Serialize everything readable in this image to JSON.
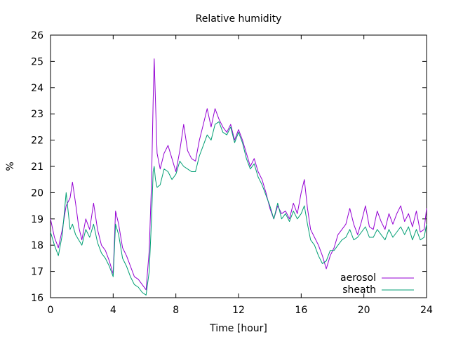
{
  "chart_data": {
    "type": "line",
    "title": "Relative humidity",
    "xlabel": "Time [hour]",
    "ylabel": "%",
    "xlim": [
      0,
      24
    ],
    "ylim": [
      16,
      26
    ],
    "xticks": [
      0,
      4,
      8,
      12,
      16,
      20,
      24
    ],
    "yticks": [
      16,
      17,
      18,
      19,
      20,
      21,
      22,
      23,
      24,
      25,
      26
    ],
    "grid": false,
    "legend_position": "bottom-right",
    "series": [
      {
        "name": "aerosol",
        "color": "#9400d3",
        "x": [
          0,
          0.25,
          0.5,
          0.75,
          1.0,
          1.25,
          1.4,
          1.6,
          1.8,
          2.0,
          2.25,
          2.5,
          2.75,
          3.0,
          3.25,
          3.5,
          3.75,
          4.0,
          4.15,
          4.35,
          4.6,
          4.85,
          5.1,
          5.35,
          5.6,
          5.85,
          6.1,
          6.3,
          6.45,
          6.55,
          6.62,
          6.7,
          6.8,
          7.0,
          7.25,
          7.5,
          7.75,
          8.0,
          8.25,
          8.5,
          8.75,
          9.0,
          9.25,
          9.5,
          9.75,
          10.0,
          10.25,
          10.5,
          10.75,
          11.0,
          11.25,
          11.5,
          11.75,
          12.0,
          12.25,
          12.5,
          12.75,
          13.0,
          13.25,
          13.5,
          13.75,
          14.0,
          14.25,
          14.5,
          14.75,
          15.0,
          15.25,
          15.5,
          15.75,
          16.0,
          16.2,
          16.4,
          16.6,
          16.85,
          17.1,
          17.35,
          17.6,
          17.85,
          18.1,
          18.35,
          18.6,
          18.85,
          19.1,
          19.35,
          19.6,
          19.85,
          20.1,
          20.35,
          20.6,
          20.85,
          21.1,
          21.35,
          21.6,
          21.85,
          22.1,
          22.35,
          22.6,
          22.85,
          23.1,
          23.35,
          23.6,
          23.85,
          24.0
        ],
        "values": [
          19.0,
          18.3,
          17.9,
          18.6,
          19.5,
          19.8,
          20.4,
          19.6,
          18.7,
          18.2,
          19.0,
          18.6,
          19.6,
          18.6,
          18.0,
          17.8,
          17.4,
          16.9,
          19.3,
          18.8,
          17.9,
          17.6,
          17.2,
          16.8,
          16.7,
          16.5,
          16.3,
          17.8,
          20.4,
          23.5,
          25.1,
          23.5,
          21.5,
          20.9,
          21.5,
          21.8,
          21.3,
          20.8,
          21.6,
          22.6,
          21.6,
          21.3,
          21.2,
          22.0,
          22.6,
          23.2,
          22.5,
          23.2,
          22.8,
          22.5,
          22.3,
          22.6,
          22.0,
          22.4,
          22.0,
          21.5,
          21.0,
          21.3,
          20.8,
          20.5,
          20.0,
          19.4,
          19.0,
          19.5,
          19.2,
          19.3,
          19.0,
          19.6,
          19.2,
          20.0,
          20.5,
          19.4,
          18.6,
          18.3,
          18.0,
          17.6,
          17.1,
          17.6,
          17.9,
          18.4,
          18.6,
          18.8,
          19.4,
          18.8,
          18.4,
          18.9,
          19.5,
          18.7,
          18.6,
          19.3,
          18.9,
          18.6,
          19.2,
          18.8,
          19.2,
          19.5,
          18.9,
          19.2,
          18.7,
          19.3,
          18.5,
          18.6,
          19.4
        ]
      },
      {
        "name": "sheath",
        "color": "#009e73",
        "x": [
          0,
          0.25,
          0.5,
          0.75,
          1.0,
          1.25,
          1.4,
          1.6,
          1.8,
          2.0,
          2.25,
          2.5,
          2.75,
          3.0,
          3.25,
          3.5,
          3.75,
          4.0,
          4.15,
          4.35,
          4.6,
          4.85,
          5.1,
          5.35,
          5.6,
          5.85,
          6.1,
          6.3,
          6.45,
          6.55,
          6.62,
          6.7,
          6.8,
          7.0,
          7.25,
          7.5,
          7.75,
          8.0,
          8.25,
          8.5,
          8.75,
          9.0,
          9.25,
          9.5,
          9.75,
          10.0,
          10.25,
          10.5,
          10.75,
          11.0,
          11.25,
          11.5,
          11.75,
          12.0,
          12.25,
          12.5,
          12.75,
          13.0,
          13.25,
          13.5,
          13.75,
          14.0,
          14.25,
          14.5,
          14.75,
          15.0,
          15.25,
          15.5,
          15.75,
          16.0,
          16.2,
          16.4,
          16.6,
          16.85,
          17.1,
          17.35,
          17.6,
          17.85,
          18.1,
          18.35,
          18.6,
          18.85,
          19.1,
          19.35,
          19.6,
          19.85,
          20.1,
          20.35,
          20.6,
          20.85,
          21.1,
          21.35,
          21.6,
          21.85,
          22.1,
          22.35,
          22.6,
          22.85,
          23.1,
          23.35,
          23.6,
          23.85,
          24.0
        ],
        "values": [
          18.5,
          18.0,
          17.6,
          18.4,
          20.0,
          18.6,
          18.8,
          18.4,
          18.2,
          18.0,
          18.6,
          18.3,
          18.8,
          18.1,
          17.7,
          17.5,
          17.2,
          16.8,
          18.8,
          18.4,
          17.5,
          17.2,
          16.8,
          16.5,
          16.4,
          16.2,
          16.1,
          17.0,
          19.0,
          20.8,
          21.0,
          20.5,
          20.2,
          20.3,
          20.9,
          20.8,
          20.5,
          20.7,
          21.2,
          21.0,
          20.9,
          20.8,
          20.8,
          21.4,
          21.8,
          22.2,
          22.0,
          22.6,
          22.7,
          22.3,
          22.2,
          22.5,
          21.9,
          22.3,
          21.9,
          21.3,
          20.9,
          21.1,
          20.6,
          20.3,
          19.9,
          19.5,
          19.0,
          19.6,
          19.0,
          19.2,
          18.9,
          19.3,
          19.0,
          19.2,
          19.5,
          18.8,
          18.2,
          18.0,
          17.6,
          17.3,
          17.4,
          17.8,
          17.8,
          18.0,
          18.2,
          18.3,
          18.6,
          18.2,
          18.3,
          18.5,
          18.7,
          18.3,
          18.3,
          18.6,
          18.4,
          18.2,
          18.6,
          18.3,
          18.5,
          18.7,
          18.4,
          18.7,
          18.2,
          18.6,
          18.2,
          18.3,
          18.8
        ]
      }
    ]
  }
}
